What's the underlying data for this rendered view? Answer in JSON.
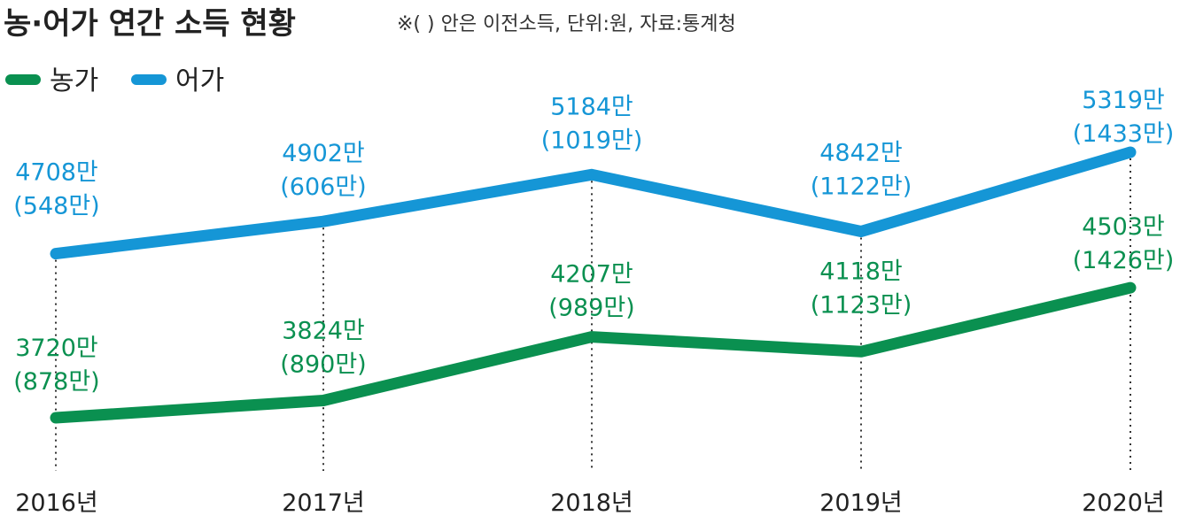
{
  "title": "농·어가 연간 소득 현황",
  "note": "※( ) 안은 이전소득, 단위:원, 자료:통계청",
  "colors": {
    "farm": "#0a9050",
    "fish": "#1596d6"
  },
  "chart_data": {
    "type": "line",
    "categories": [
      "2016년",
      "2017년",
      "2018년",
      "2019년",
      "2020년"
    ],
    "series": [
      {
        "name": "농가",
        "values": [
          3720,
          3824,
          4207,
          4118,
          4503
        ],
        "labels": [
          "3720만",
          "3824만",
          "4207만",
          "4118만",
          "4503만"
        ],
        "sub_labels": [
          "(878만)",
          "(890만)",
          "(989만)",
          "(1123만)",
          "(1426만)"
        ]
      },
      {
        "name": "어가",
        "values": [
          4708,
          4902,
          5184,
          4842,
          5319
        ],
        "labels": [
          "4708만",
          "4902만",
          "5184만",
          "4842만",
          "5319만"
        ],
        "sub_labels": [
          "(548만)",
          "(606만)",
          "(1019만)",
          "(1122만)",
          "(1433만)"
        ]
      }
    ]
  }
}
